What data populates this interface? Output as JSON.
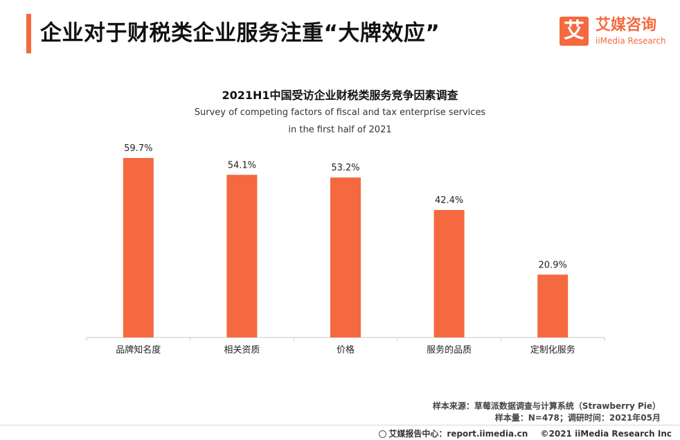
{
  "header": {
    "title": "企业对于财税类企业服务注重“大牌效应”"
  },
  "logo": {
    "mark": "艾",
    "cn": "艾媒咨询",
    "en": "iiMedia Research"
  },
  "chart_data": {
    "type": "bar",
    "title": "2021H1中国受访企业财税类服务竞争因素调查",
    "subtitle_line1": "Survey of competing factors of fiscal and tax enterprise services",
    "subtitle_line2": "in the first half of 2021",
    "categories": [
      "品牌知名度",
      "相关资质",
      "价格",
      "服务的品质",
      "定制化服务"
    ],
    "values": [
      59.7,
      54.1,
      53.2,
      42.4,
      20.9
    ],
    "value_labels": [
      "59.7%",
      "54.1%",
      "53.2%",
      "42.4%",
      "20.9%"
    ],
    "unit": "%",
    "xlabel": "",
    "ylabel": "",
    "ylim": [
      0,
      60
    ],
    "grid": false,
    "color": "#f4693f"
  },
  "source": {
    "line1": "样本来源：草莓派数据调查与计算系统（Strawberry Pie）",
    "line2": "样本量：N=478；调研时间：2021年05月"
  },
  "footer": {
    "center": "艾媒报告中心：report.iimedia.cn",
    "copyright": "©2021  iiMedia Research  Inc"
  }
}
